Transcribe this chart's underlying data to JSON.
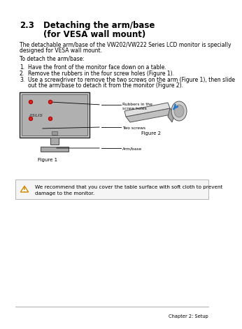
{
  "chapter_label": "Chapter 2: Setup",
  "section_num": "2.3",
  "title_line1": "Detaching the arm/base",
  "title_line2": "(for VESA wall mount)",
  "intro_text": "The detachable arm/base of the VW202/VW222 Series LCD monitor is specially\ndesigned for VESA wall mount.",
  "to_detach": "To detach the arm/base:",
  "steps": [
    "Have the front of the monitor face down on a table.",
    "Remove the rubbers in the four screw holes (Figure 1).",
    "Use a screwdriver to remove the two screws on the arm (Figure 1), then slide\n    out the arm/base to detach it from the monitor (Figure 2)."
  ],
  "figure1_label": "Figure 1",
  "figure2_label": "Figure 2",
  "callout1": "Rubbers in the\nscrew holes",
  "callout2": "Two screws",
  "callout3": "Arm/base",
  "note_text": "We recommend that you cover the table surface with soft cloth to prevent\ndamage to the monitor.",
  "bg_color": "#ffffff",
  "text_color": "#000000",
  "body_fontsize": 5.5,
  "title_fontsize": 8.5,
  "section_fontsize": 8.5
}
